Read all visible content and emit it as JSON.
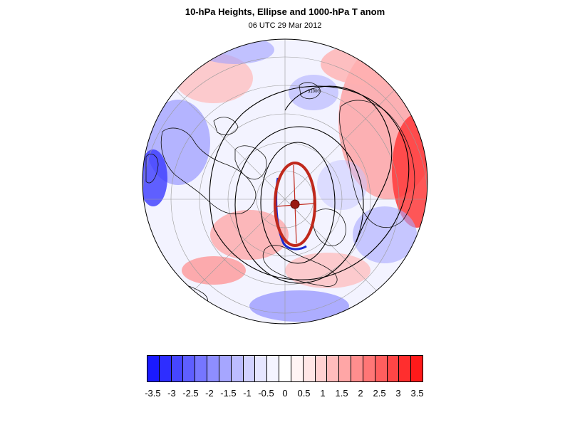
{
  "title": "10-hPa Heights, Ellipse and 1000-hPa T anom",
  "subtitle": "06 UTC 29 Mar 2012",
  "contour_label": "31000",
  "colorbar": {
    "colors": [
      "#1a1aff",
      "#2e2eff",
      "#4646ff",
      "#5e5eff",
      "#7676ff",
      "#8e8eff",
      "#a6a6ff",
      "#bcbcff",
      "#d2d2ff",
      "#e6e6ff",
      "#f4f4ff",
      "#ffffff",
      "#fff4f4",
      "#ffe6e6",
      "#ffd2d2",
      "#ffbcbc",
      "#ffa6a6",
      "#ff8e8e",
      "#ff7676",
      "#ff5e5e",
      "#ff4646",
      "#ff2e2e",
      "#ff1a1a"
    ],
    "labels": [
      "-3.5",
      "-3",
      "-2.5",
      "-2",
      "-1.5",
      "-1",
      "-0.5",
      "0",
      "0.5",
      "1",
      "1.5",
      "2",
      "2.5",
      "3",
      "3.5"
    ]
  },
  "legend_colors": {
    "ellipse": "#c0281c",
    "vortex_edge": "#1a2ad0",
    "contour": "#000000",
    "graticule": "#9a9a9a",
    "coastline": "#111111"
  }
}
